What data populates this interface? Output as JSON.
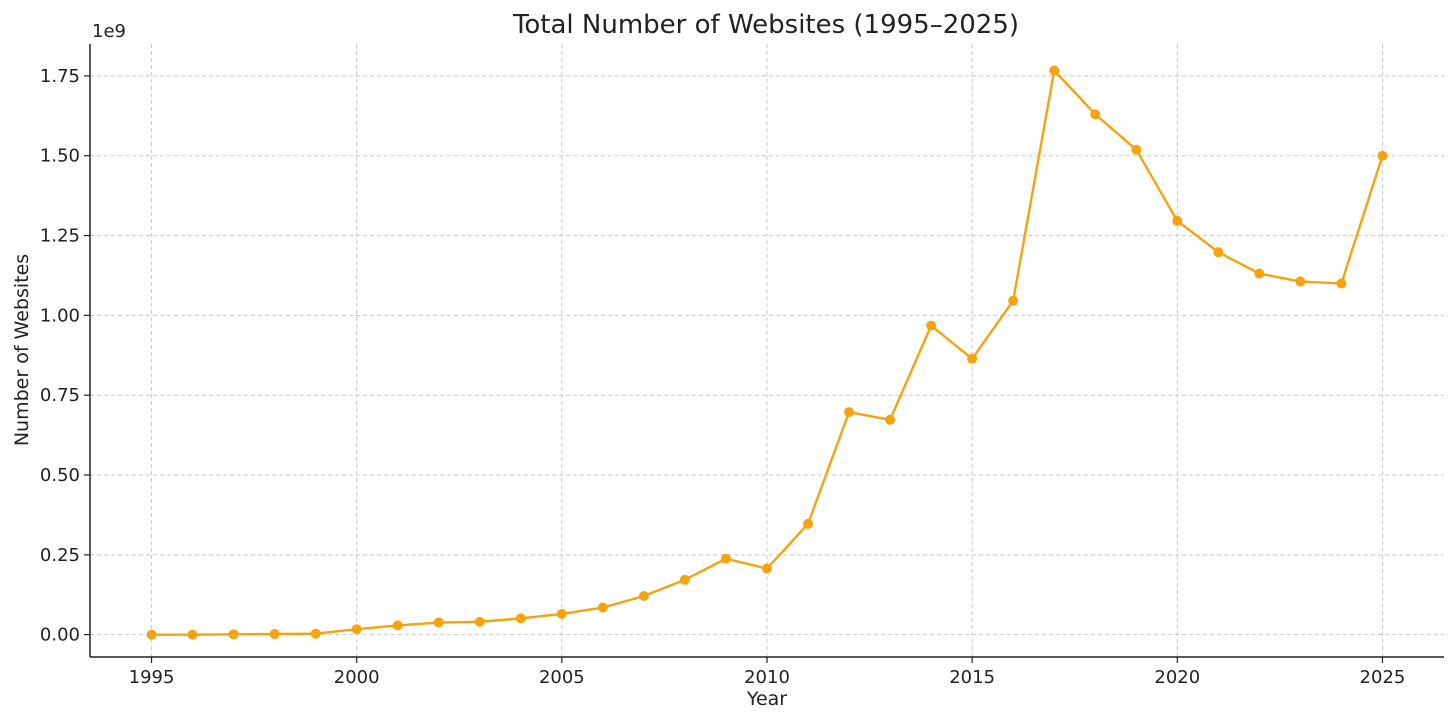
{
  "chart_data": {
    "type": "line",
    "title": "Total Number of Websites (1995–2025)",
    "xlabel": "Year",
    "ylabel": "Number of Websites",
    "y_offset_label": "1e9",
    "y_multiplier": 1000000000,
    "xlim": [
      1993.5,
      2026.5
    ],
    "ylim": [
      -0.07,
      1.85
    ],
    "x_ticks": [
      1995,
      2000,
      2005,
      2010,
      2015,
      2020,
      2025
    ],
    "x_tick_labels": [
      "1995",
      "2000",
      "2005",
      "2010",
      "2015",
      "2020",
      "2025"
    ],
    "y_ticks": [
      0.0,
      0.25,
      0.5,
      0.75,
      1.0,
      1.25,
      1.5,
      1.75
    ],
    "y_tick_labels": [
      "0.00",
      "0.25",
      "0.50",
      "0.75",
      "1.00",
      "1.25",
      "1.50",
      "1.75"
    ],
    "grid": true,
    "series": [
      {
        "color": "#F5A30F",
        "marker": "circle",
        "x": [
          1995,
          1996,
          1997,
          1998,
          1999,
          2000,
          2001,
          2002,
          2003,
          2004,
          2005,
          2006,
          2007,
          2008,
          2009,
          2010,
          2011,
          2012,
          2013,
          2014,
          2015,
          2016,
          2017,
          2018,
          2019,
          2020,
          2021,
          2022,
          2023,
          2024,
          2025
        ],
        "y": [
          0.0,
          0.0,
          0.001,
          0.002,
          0.003,
          0.017,
          0.029,
          0.038,
          0.04,
          0.051,
          0.065,
          0.085,
          0.121,
          0.172,
          0.238,
          0.207,
          0.347,
          0.697,
          0.673,
          0.968,
          0.864,
          1.046,
          1.767,
          1.63,
          1.519,
          1.296,
          1.198,
          1.131,
          1.106,
          1.1,
          1.5
        ]
      }
    ]
  }
}
